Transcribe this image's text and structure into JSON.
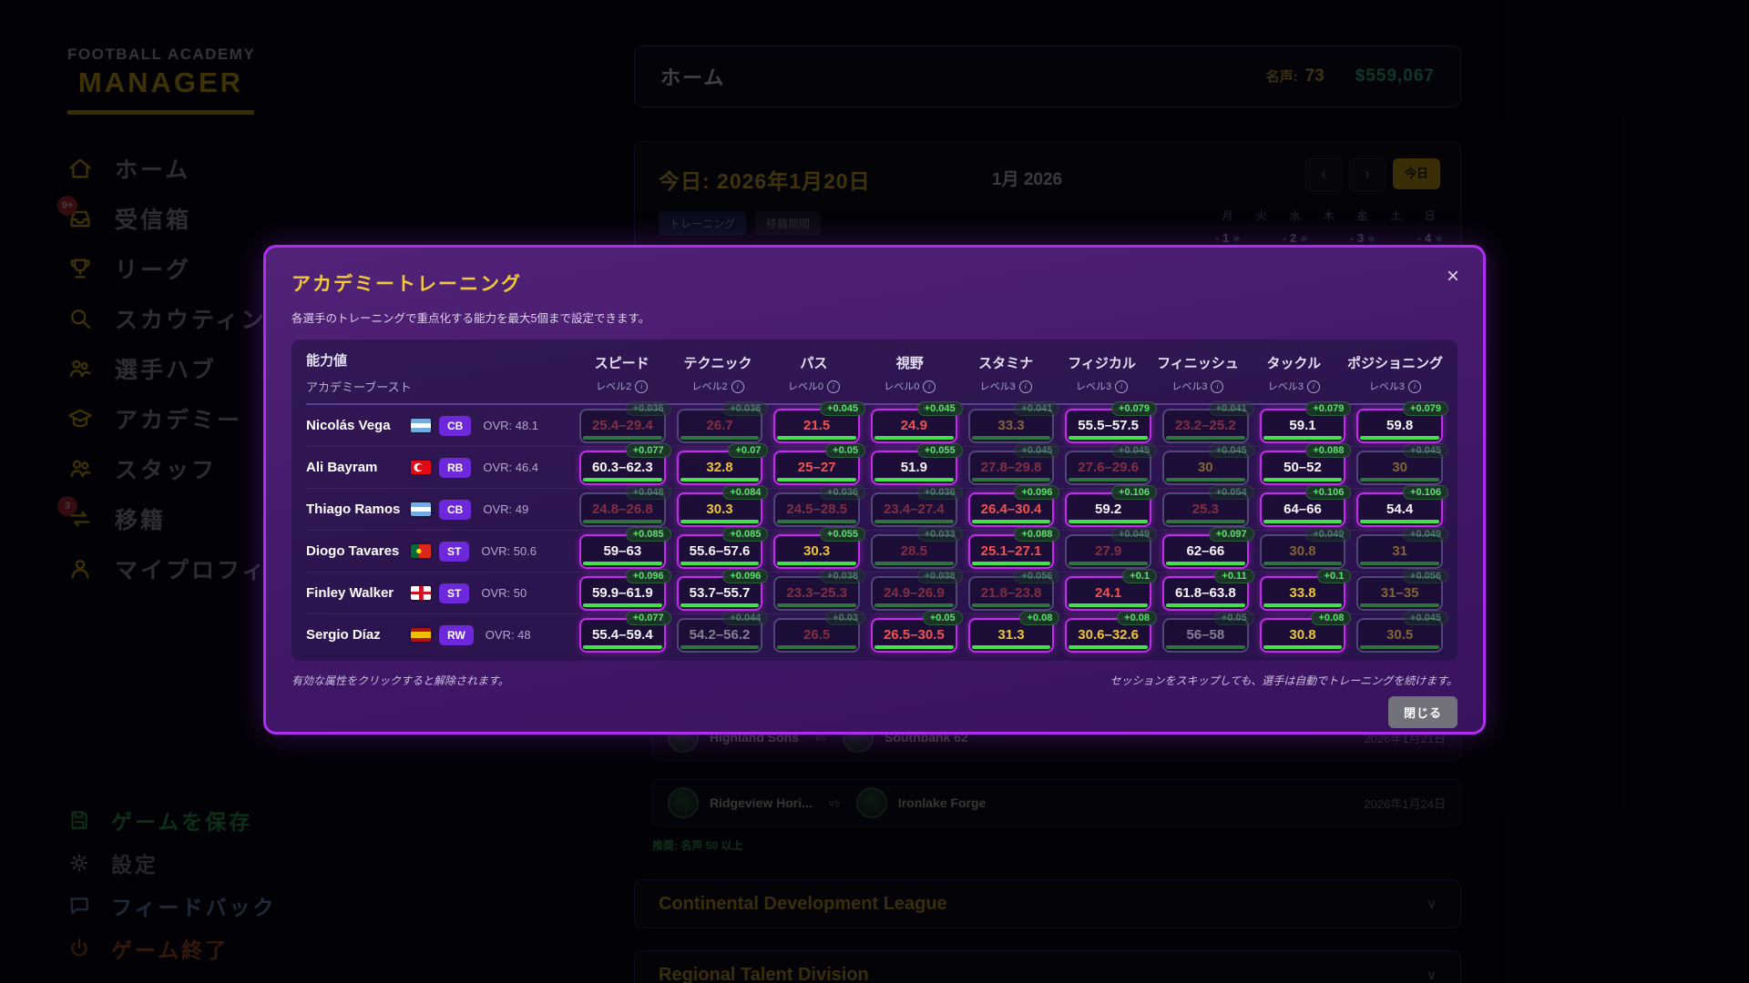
{
  "app": {
    "logo_line1": "FOOTBALL ACADEMY",
    "logo_line2": "MANAGER"
  },
  "sidebar": {
    "items": [
      {
        "label": "ホーム",
        "icon": "home",
        "badge": ""
      },
      {
        "label": "受信箱",
        "icon": "inbox",
        "badge": "9+"
      },
      {
        "label": "リーグ",
        "icon": "trophy",
        "badge": ""
      },
      {
        "label": "スカウティング",
        "icon": "search",
        "badge": ""
      },
      {
        "label": "選手ハブ",
        "icon": "players",
        "badge": ""
      },
      {
        "label": "アカデミー",
        "icon": "academy",
        "badge": ""
      },
      {
        "label": "スタッフ",
        "icon": "staff",
        "badge": ""
      },
      {
        "label": "移籍",
        "icon": "transfer",
        "badge": "3"
      },
      {
        "label": "マイプロフィール",
        "icon": "profile",
        "badge": ""
      }
    ],
    "footer_items": [
      {
        "label": "ゲームを保存",
        "icon": "save",
        "tone": "green"
      },
      {
        "label": "設定",
        "icon": "gear",
        "tone": "grey"
      },
      {
        "label": "フィードバック",
        "icon": "feedback",
        "tone": "blue"
      },
      {
        "label": "ゲーム終了",
        "icon": "power",
        "tone": "red"
      }
    ]
  },
  "topbar": {
    "title": "ホーム",
    "reputation_label": "名声:",
    "reputation_value": "73",
    "money": "$559,067"
  },
  "background": {
    "today_label": "今日: 2026年1月20日",
    "event_badges": [
      "トレーニング",
      "移籍期間"
    ],
    "calendar_title": "1月 2026",
    "nav_prev": "‹",
    "nav_next": "›",
    "today_button": "今日",
    "weekdays": [
      "月",
      "火",
      "水",
      "木",
      "金",
      "土",
      "日"
    ],
    "visible_days": [
      "1",
      "2",
      "3",
      "4"
    ],
    "day_marks": {
      "training": "▪",
      "snow": "❄"
    },
    "matches": [
      {
        "home": "Highland Sons",
        "vs": "vs",
        "away": "Southbank 62",
        "date": "2026年1月21日"
      },
      {
        "home": "Ridgeview Hori...",
        "vs": "vs",
        "away": "Ironlake Forge",
        "date": "2026年1月24日"
      }
    ],
    "recommend_note": "推奨: 名声 50 以上",
    "league_sections": [
      {
        "name": "Continental Development League",
        "chevron": "∨"
      },
      {
        "name": "Regional Talent Division",
        "chevron": "∨"
      }
    ]
  },
  "modal": {
    "title": "アカデミートレーニング",
    "close_icon": "×",
    "subtitle": "各選手のトレーニングで重点化する能力を最大5個まで設定できます。",
    "accent_colors": {
      "active_border": "#c32ce8",
      "boost_green": "#5ae06a",
      "value_red": "#f05252",
      "value_yellow": "#eec437",
      "value_white": "#f7f6fb",
      "title_gold": "#f3c93c"
    },
    "table": {
      "corner_title": "能力値",
      "corner_subtitle": "アカデミーブースト",
      "info_icon": "i",
      "columns": [
        {
          "name": "スピード",
          "level": "レベル2"
        },
        {
          "name": "テクニック",
          "level": "レベル2"
        },
        {
          "name": "パス",
          "level": "レベル0"
        },
        {
          "name": "視野",
          "level": "レベル0"
        },
        {
          "name": "スタミナ",
          "level": "レベル3"
        },
        {
          "name": "フィジカル",
          "level": "レベル3"
        },
        {
          "name": "フィニッシュ",
          "level": "レベル3"
        },
        {
          "name": "タックル",
          "level": "レベル3"
        },
        {
          "name": "ポジショニング",
          "level": "レベル3"
        }
      ],
      "players": [
        {
          "name": "Nicolás Vega",
          "flag": "ar",
          "position": "CB",
          "ovr": "OVR: 48.1",
          "stats": [
            {
              "v": "25.4–29.4",
              "b": "+0.036",
              "c": "r",
              "a": false
            },
            {
              "v": "26.7",
              "b": "+0.036",
              "c": "r",
              "a": false
            },
            {
              "v": "21.5",
              "b": "+0.045",
              "c": "r",
              "a": true
            },
            {
              "v": "24.9",
              "b": "+0.045",
              "c": "r",
              "a": true
            },
            {
              "v": "33.3",
              "b": "+0.041",
              "c": "y",
              "a": false
            },
            {
              "v": "55.5–57.5",
              "b": "+0.079",
              "c": "w",
              "a": true
            },
            {
              "v": "23.2–25.2",
              "b": "+0.041",
              "c": "r",
              "a": false
            },
            {
              "v": "59.1",
              "b": "+0.079",
              "c": "w",
              "a": true
            },
            {
              "v": "59.8",
              "b": "+0.079",
              "c": "w",
              "a": true
            }
          ]
        },
        {
          "name": "Ali Bayram",
          "flag": "tr",
          "position": "RB",
          "ovr": "OVR: 46.4",
          "stats": [
            {
              "v": "60.3–62.3",
              "b": "+0.077",
              "c": "w",
              "a": true
            },
            {
              "v": "32.8",
              "b": "+0.07",
              "c": "y",
              "a": true
            },
            {
              "v": "25–27",
              "b": "+0.05",
              "c": "r",
              "a": true
            },
            {
              "v": "51.9",
              "b": "+0.055",
              "c": "w",
              "a": true
            },
            {
              "v": "27.8–29.8",
              "b": "+0.045",
              "c": "r",
              "a": false
            },
            {
              "v": "27.6–29.6",
              "b": "+0.045",
              "c": "r",
              "a": false
            },
            {
              "v": "30",
              "b": "+0.045",
              "c": "y",
              "a": false
            },
            {
              "v": "50–52",
              "b": "+0.088",
              "c": "w",
              "a": true
            },
            {
              "v": "30",
              "b": "+0.045",
              "c": "y",
              "a": false
            }
          ]
        },
        {
          "name": "Thiago Ramos",
          "flag": "ar",
          "position": "CB",
          "ovr": "OVR: 49",
          "stats": [
            {
              "v": "24.8–26.8",
              "b": "+0.048",
              "c": "r",
              "a": false
            },
            {
              "v": "30.3",
              "b": "+0.084",
              "c": "y",
              "a": true
            },
            {
              "v": "24.5–28.5",
              "b": "+0.036",
              "c": "r",
              "a": false
            },
            {
              "v": "23.4–27.4",
              "b": "+0.036",
              "c": "r",
              "a": false
            },
            {
              "v": "26.4–30.4",
              "b": "+0.096",
              "c": "r",
              "a": true
            },
            {
              "v": "59.2",
              "b": "+0.106",
              "c": "w",
              "a": true
            },
            {
              "v": "25.3",
              "b": "+0.054",
              "c": "r",
              "a": false
            },
            {
              "v": "64–66",
              "b": "+0.106",
              "c": "w",
              "a": true
            },
            {
              "v": "54.4",
              "b": "+0.106",
              "c": "w",
              "a": true
            }
          ]
        },
        {
          "name": "Diogo Tavares",
          "flag": "pt",
          "position": "ST",
          "ovr": "OVR: 50.6",
          "stats": [
            {
              "v": "59–63",
              "b": "+0.085",
              "c": "w",
              "a": true
            },
            {
              "v": "55.6–57.6",
              "b": "+0.085",
              "c": "w",
              "a": true
            },
            {
              "v": "30.3",
              "b": "+0.055",
              "c": "y",
              "a": true
            },
            {
              "v": "28.5",
              "b": "+0.033",
              "c": "r",
              "a": false
            },
            {
              "v": "25.1–27.1",
              "b": "+0.088",
              "c": "r",
              "a": true
            },
            {
              "v": "27.9",
              "b": "+0.049",
              "c": "r",
              "a": false
            },
            {
              "v": "62–66",
              "b": "+0.097",
              "c": "w",
              "a": true
            },
            {
              "v": "30.8",
              "b": "+0.049",
              "c": "y",
              "a": false
            },
            {
              "v": "31",
              "b": "+0.049",
              "c": "y",
              "a": false
            }
          ]
        },
        {
          "name": "Finley Walker",
          "flag": "en",
          "position": "ST",
          "ovr": "OVR: 50",
          "stats": [
            {
              "v": "59.9–61.9",
              "b": "+0.096",
              "c": "w",
              "a": true
            },
            {
              "v": "53.7–55.7",
              "b": "+0.096",
              "c": "w",
              "a": true
            },
            {
              "v": "23.3–25.3",
              "b": "+0.038",
              "c": "r",
              "a": false
            },
            {
              "v": "24.9–26.9",
              "b": "+0.038",
              "c": "r",
              "a": false
            },
            {
              "v": "21.8–23.8",
              "b": "+0.056",
              "c": "r",
              "a": false
            },
            {
              "v": "24.1",
              "b": "+0.1",
              "c": "r",
              "a": true
            },
            {
              "v": "61.8–63.8",
              "b": "+0.11",
              "c": "w",
              "a": true
            },
            {
              "v": "33.8",
              "b": "+0.1",
              "c": "y",
              "a": true
            },
            {
              "v": "31–35",
              "b": "+0.056",
              "c": "y",
              "a": false
            }
          ]
        },
        {
          "name": "Sergio Díaz",
          "flag": "es",
          "position": "RW",
          "ovr": "OVR: 48",
          "stats": [
            {
              "v": "55.4–59.4",
              "b": "+0.077",
              "c": "w",
              "a": true
            },
            {
              "v": "54.2–56.2",
              "b": "+0.044",
              "c": "w",
              "a": false
            },
            {
              "v": "26.5",
              "b": "+0.03",
              "c": "r",
              "a": false
            },
            {
              "v": "26.5–30.5",
              "b": "+0.05",
              "c": "r",
              "a": true
            },
            {
              "v": "31.3",
              "b": "+0.08",
              "c": "y",
              "a": true
            },
            {
              "v": "30.6–32.6",
              "b": "+0.08",
              "c": "y",
              "a": true
            },
            {
              "v": "56–58",
              "b": "+0.05",
              "c": "w",
              "a": false
            },
            {
              "v": "30.8",
              "b": "+0.08",
              "c": "y",
              "a": true
            },
            {
              "v": "30.5",
              "b": "+0.045",
              "c": "y",
              "a": false
            }
          ]
        }
      ]
    },
    "footer": {
      "left_note": "有効な属性をクリックすると解除されます。",
      "right_note": "セッションをスキップしても、選手は自動でトレーニングを続けます。",
      "close_button": "閉じる"
    }
  }
}
